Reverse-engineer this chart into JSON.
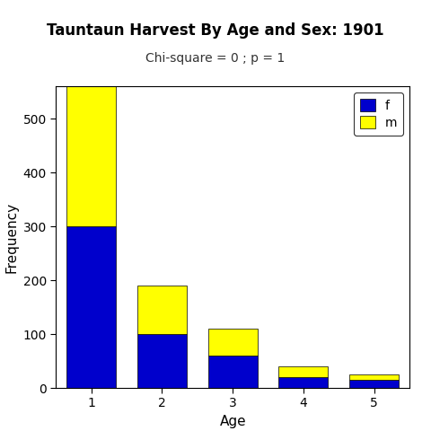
{
  "title": "Tauntaun Harvest By Age and Sex: 1901",
  "subtitle": "Chi-square = 0 ; p = 1",
  "xlabel": "Age",
  "ylabel": "Frequency",
  "categories": [
    1,
    2,
    3,
    4,
    5
  ],
  "female_values": [
    300,
    100,
    60,
    20,
    15
  ],
  "male_values": [
    260,
    90,
    50,
    20,
    10
  ],
  "female_color": "#0000CC",
  "male_color": "#FFFF00",
  "ylim": [
    0,
    560
  ],
  "yticks": [
    0,
    100,
    200,
    300,
    400,
    500
  ],
  "bar_width": 0.7,
  "background_color": "#FFFFFF",
  "title_fontsize": 12,
  "subtitle_fontsize": 10,
  "axis_label_fontsize": 11,
  "tick_fontsize": 10
}
